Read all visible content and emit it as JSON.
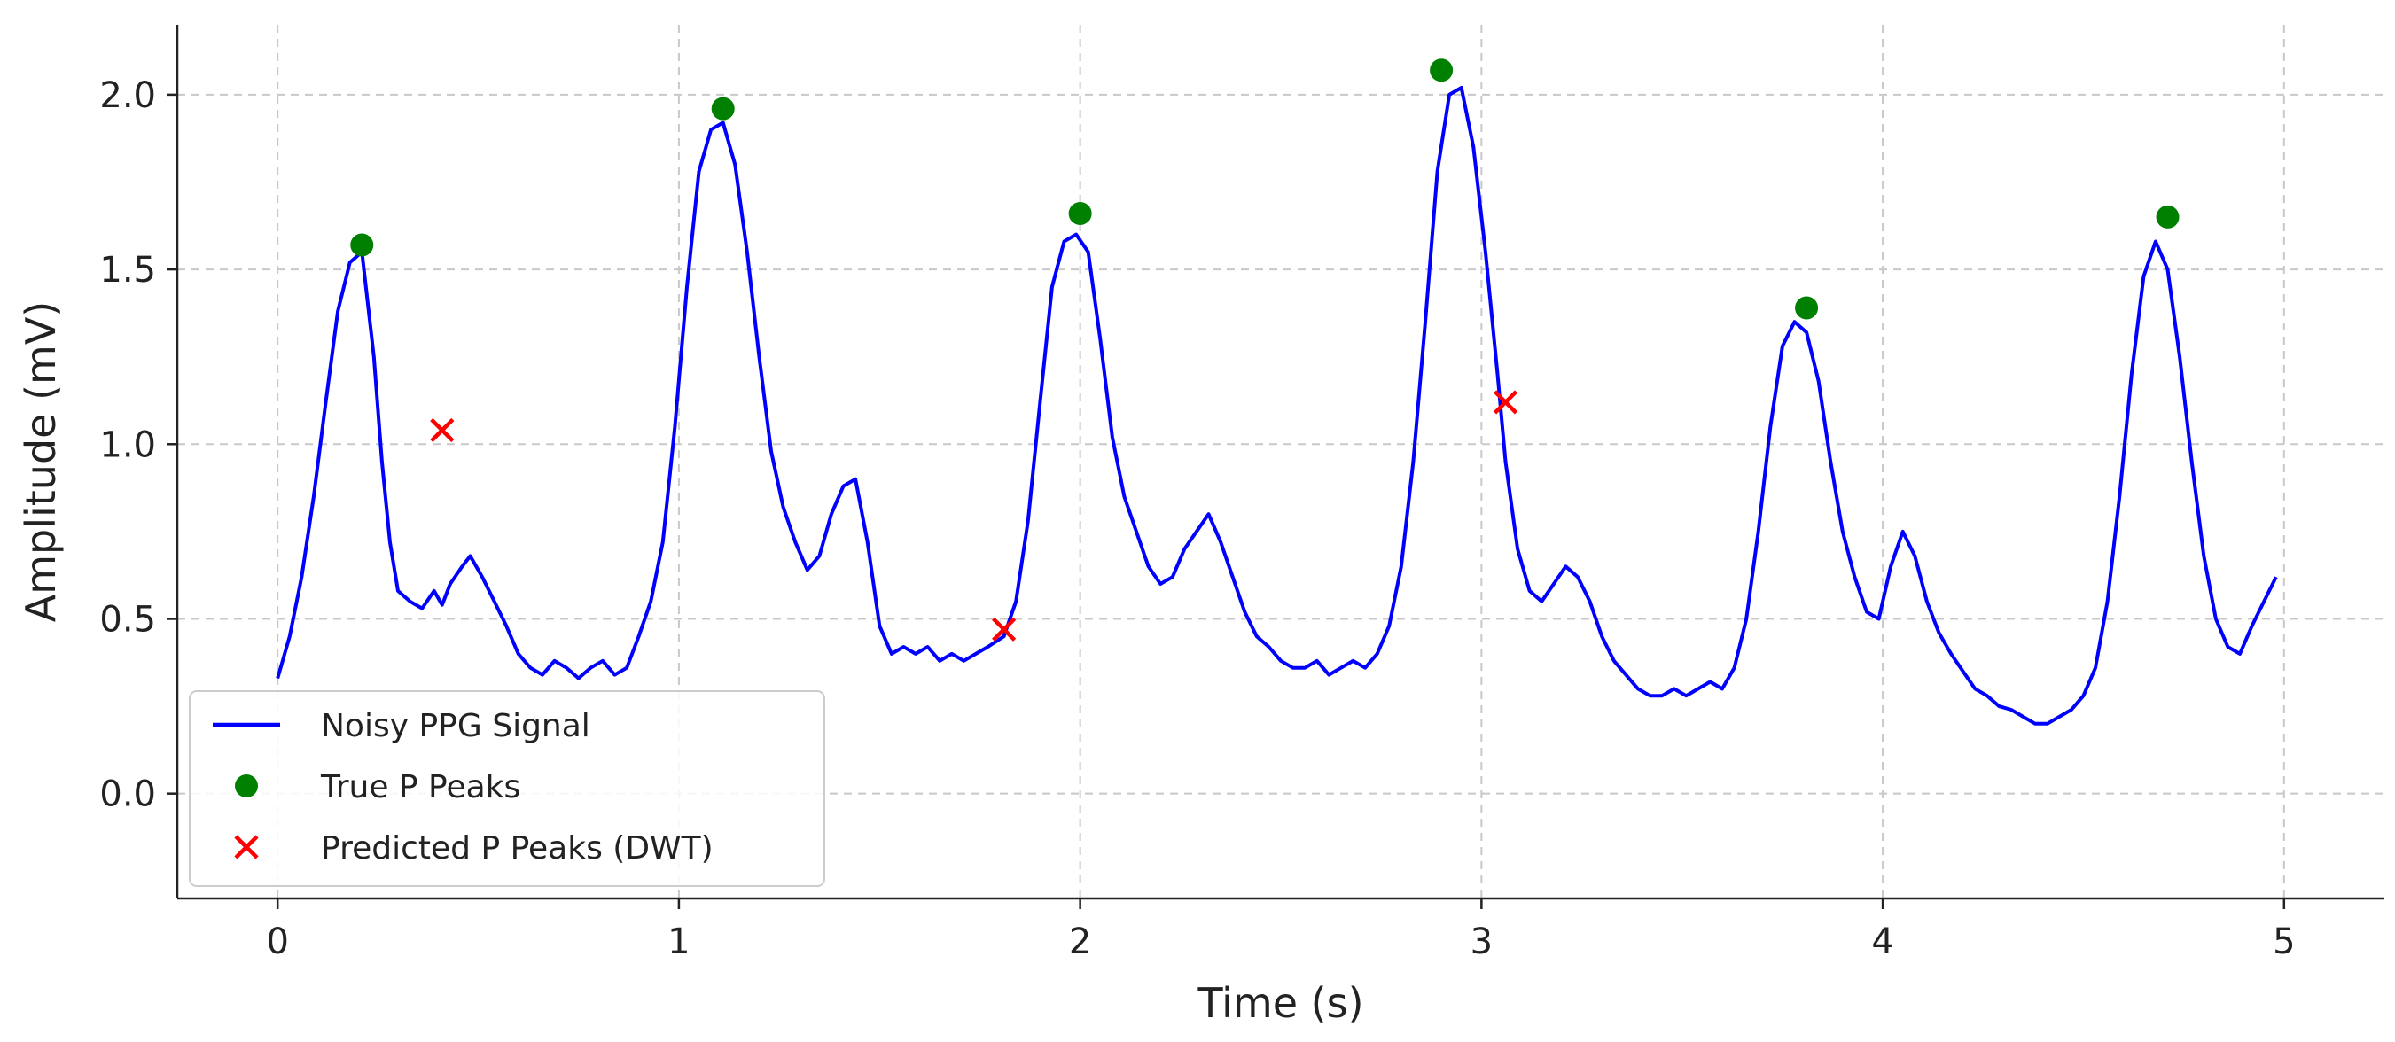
{
  "chart_data": {
    "type": "line",
    "title": "",
    "xlabel": "Time (s)",
    "ylabel": "Amplitude (mV)",
    "xlim": [
      -0.25,
      5.25
    ],
    "ylim": [
      -0.3,
      2.2
    ],
    "xticks": [
      0,
      1,
      2,
      3,
      4,
      5
    ],
    "xtick_labels": [
      "0",
      "1",
      "2",
      "3",
      "4",
      "5"
    ],
    "yticks": [
      0.0,
      0.5,
      1.0,
      1.5,
      2.0
    ],
    "ytick_labels": [
      "0.0",
      "0.5",
      "1.0",
      "1.5",
      "2.0"
    ],
    "grid": true,
    "legend_position": "lower-left",
    "colors": {
      "signal": "#0000ff",
      "true_peaks": "#008000",
      "predicted_peaks": "#ff0000",
      "grid": "#c8c8c8",
      "axes": "#222222"
    },
    "series": [
      {
        "name": "Noisy PPG Signal",
        "kind": "line",
        "x": [
          0.0,
          0.03,
          0.06,
          0.09,
          0.12,
          0.15,
          0.18,
          0.21,
          0.24,
          0.26,
          0.28,
          0.3,
          0.33,
          0.36,
          0.39,
          0.41,
          0.43,
          0.46,
          0.48,
          0.51,
          0.54,
          0.57,
          0.6,
          0.63,
          0.66,
          0.69,
          0.72,
          0.75,
          0.78,
          0.81,
          0.84,
          0.87,
          0.9,
          0.93,
          0.96,
          0.99,
          1.02,
          1.05,
          1.08,
          1.11,
          1.14,
          1.17,
          1.2,
          1.23,
          1.26,
          1.29,
          1.32,
          1.35,
          1.38,
          1.41,
          1.44,
          1.47,
          1.5,
          1.53,
          1.56,
          1.59,
          1.62,
          1.65,
          1.68,
          1.71,
          1.74,
          1.77,
          1.81,
          1.84,
          1.87,
          1.9,
          1.93,
          1.96,
          1.99,
          2.02,
          2.05,
          2.08,
          2.11,
          2.14,
          2.17,
          2.2,
          2.23,
          2.26,
          2.29,
          2.32,
          2.35,
          2.38,
          2.41,
          2.44,
          2.47,
          2.5,
          2.53,
          2.56,
          2.59,
          2.62,
          2.65,
          2.68,
          2.71,
          2.74,
          2.77,
          2.8,
          2.83,
          2.86,
          2.89,
          2.92,
          2.95,
          2.98,
          3.01,
          3.04,
          3.06,
          3.09,
          3.12,
          3.15,
          3.18,
          3.21,
          3.24,
          3.27,
          3.3,
          3.33,
          3.36,
          3.39,
          3.42,
          3.45,
          3.48,
          3.51,
          3.54,
          3.57,
          3.6,
          3.63,
          3.66,
          3.69,
          3.72,
          3.75,
          3.78,
          3.81,
          3.84,
          3.87,
          3.9,
          3.93,
          3.96,
          3.99,
          4.02,
          4.05,
          4.08,
          4.11,
          4.14,
          4.17,
          4.2,
          4.23,
          4.26,
          4.29,
          4.32,
          4.35,
          4.38,
          4.41,
          4.44,
          4.47,
          4.5,
          4.53,
          4.56,
          4.59,
          4.62,
          4.65,
          4.68,
          4.71,
          4.74,
          4.77,
          4.8,
          4.83,
          4.86,
          4.89,
          4.92,
          4.95,
          4.98
        ],
        "y": [
          0.33,
          0.45,
          0.62,
          0.85,
          1.12,
          1.38,
          1.52,
          1.55,
          1.25,
          0.95,
          0.72,
          0.58,
          0.55,
          0.53,
          0.58,
          0.54,
          0.6,
          0.65,
          0.68,
          0.62,
          0.55,
          0.48,
          0.4,
          0.36,
          0.34,
          0.38,
          0.36,
          0.33,
          0.36,
          0.38,
          0.34,
          0.36,
          0.45,
          0.55,
          0.72,
          1.05,
          1.45,
          1.78,
          1.9,
          1.92,
          1.8,
          1.55,
          1.25,
          0.98,
          0.82,
          0.72,
          0.64,
          0.68,
          0.8,
          0.88,
          0.9,
          0.72,
          0.48,
          0.4,
          0.42,
          0.4,
          0.42,
          0.38,
          0.4,
          0.38,
          0.4,
          0.42,
          0.45,
          0.55,
          0.78,
          1.12,
          1.45,
          1.58,
          1.6,
          1.55,
          1.3,
          1.02,
          0.85,
          0.75,
          0.65,
          0.6,
          0.62,
          0.7,
          0.75,
          0.8,
          0.72,
          0.62,
          0.52,
          0.45,
          0.42,
          0.38,
          0.36,
          0.36,
          0.38,
          0.34,
          0.36,
          0.38,
          0.36,
          0.4,
          0.48,
          0.65,
          0.95,
          1.35,
          1.78,
          2.0,
          2.02,
          1.85,
          1.55,
          1.2,
          0.95,
          0.7,
          0.58,
          0.55,
          0.6,
          0.65,
          0.62,
          0.55,
          0.45,
          0.38,
          0.34,
          0.3,
          0.28,
          0.28,
          0.3,
          0.28,
          0.3,
          0.32,
          0.3,
          0.36,
          0.5,
          0.75,
          1.05,
          1.28,
          1.35,
          1.32,
          1.18,
          0.95,
          0.75,
          0.62,
          0.52,
          0.5,
          0.65,
          0.75,
          0.68,
          0.55,
          0.46,
          0.4,
          0.35,
          0.3,
          0.28,
          0.25,
          0.24,
          0.22,
          0.2,
          0.2,
          0.22,
          0.24,
          0.28,
          0.36,
          0.55,
          0.85,
          1.2,
          1.48,
          1.58,
          1.5,
          1.25,
          0.95,
          0.68,
          0.5,
          0.42,
          0.4,
          0.48,
          0.55,
          0.62
        ]
      },
      {
        "name": "True P Peaks",
        "kind": "scatter",
        "marker": "circle",
        "x": [
          0.21,
          1.11,
          2.0,
          2.9,
          3.81,
          4.71
        ],
        "y": [
          1.57,
          1.96,
          1.66,
          2.07,
          1.39,
          1.65
        ]
      },
      {
        "name": "Predicted P Peaks (DWT)",
        "kind": "scatter",
        "marker": "x",
        "x": [
          0.41,
          1.81,
          3.06
        ],
        "y": [
          1.04,
          0.47,
          1.12
        ]
      }
    ]
  }
}
